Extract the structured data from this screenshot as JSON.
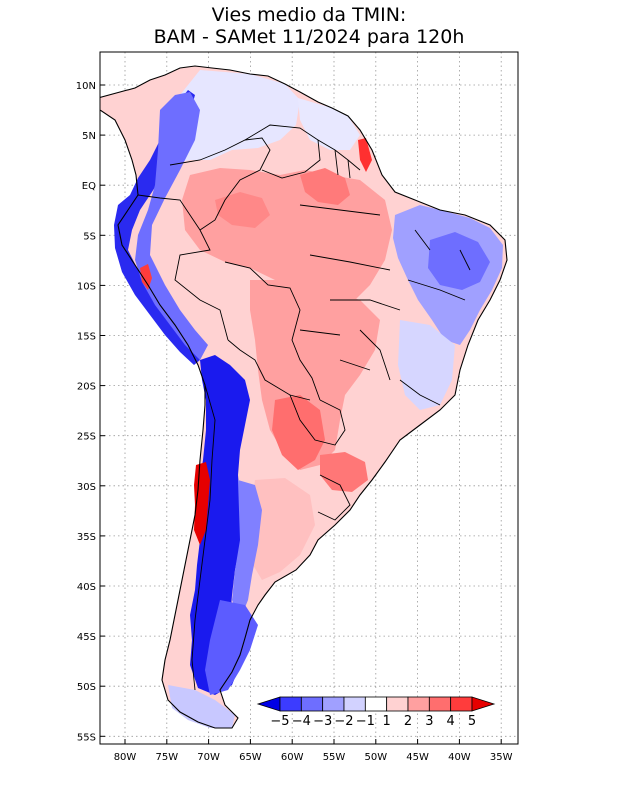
{
  "title": {
    "line1": "Vies medio da TMIN:",
    "line2": "BAM - SAMet 11/2024  para 120h"
  },
  "axes": {
    "lon_ticks": [
      "80W",
      "75W",
      "70W",
      "65W",
      "60W",
      "55W",
      "50W",
      "45W",
      "40W",
      "35W"
    ],
    "lat_ticks": [
      "10N",
      "5N",
      "EQ",
      "5S",
      "10S",
      "15S",
      "20S",
      "25S",
      "30S",
      "35S",
      "40S",
      "45S",
      "50S",
      "55S"
    ]
  },
  "colorbar": {
    "labels": [
      "-5",
      "-4",
      "-3",
      "-2",
      "-1",
      "1",
      "2",
      "3",
      "4",
      "5"
    ],
    "colors": [
      "#0000e6",
      "#3c3cff",
      "#6e6eff",
      "#a0a0ff",
      "#d2d2ff",
      "#ffffff",
      "#ffd2d2",
      "#ffa0a0",
      "#ff6e6e",
      "#ff3c3c",
      "#e60000"
    ]
  },
  "colors": {
    "neg_strong": "#1a1aee",
    "neg_mid": "#6e6eff",
    "neg_light": "#c8c8ff",
    "pos_light": "#ffd2d2",
    "pos_mid": "#ffa0a0",
    "pos_strong": "#ff6060",
    "pos_max": "#e60000"
  }
}
